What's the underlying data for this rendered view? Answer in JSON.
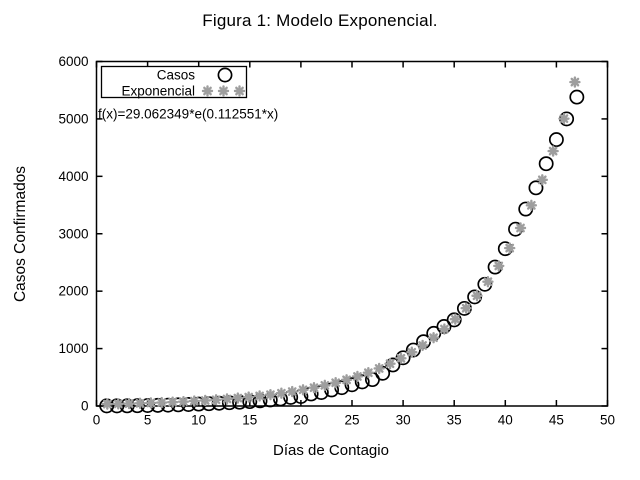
{
  "figure": {
    "title": "Figura 1: Modelo Exponencial.",
    "equation": "f(x)=29.062349*e(0.112551*x)",
    "x_axis": {
      "title": "Días de Contagio"
    },
    "y_axis": {
      "title": "Casos Confirmados"
    },
    "legend": {
      "entries": [
        {
          "label": "Casos",
          "marker": "open-circle"
        },
        {
          "label": "Exponencial",
          "marker": "asterisk"
        }
      ]
    },
    "colors": {
      "casos": "#000000",
      "exponencial": "#9e9e9e",
      "axis": "#000000",
      "background": "#ffffff"
    }
  },
  "chart_data": {
    "type": "scatter",
    "title": "Figura 1: Modelo Exponencial.",
    "xlabel": "Días de Contagio",
    "ylabel": "Casos Confirmados",
    "xlim": [
      0,
      50
    ],
    "ylim": [
      0,
      6000
    ],
    "x_ticks": [
      0,
      5,
      10,
      15,
      20,
      25,
      30,
      35,
      40,
      45,
      50
    ],
    "y_ticks": [
      0,
      1000,
      2000,
      3000,
      4000,
      5000,
      6000
    ],
    "grid": false,
    "legend_position": "top-left-inside",
    "annotation": "f(x)=29.062349*e(0.112551*x)",
    "series": [
      {
        "name": "Casos",
        "marker": "open-circle",
        "color": "#000000",
        "x": [
          1,
          2,
          3,
          4,
          5,
          6,
          7,
          8,
          9,
          10,
          11,
          12,
          13,
          14,
          15,
          16,
          17,
          18,
          19,
          20,
          21,
          22,
          23,
          24,
          25,
          26,
          27,
          28,
          29,
          30,
          31,
          32,
          33,
          34,
          35,
          36,
          37,
          38,
          39,
          40,
          41,
          42,
          43,
          44,
          45,
          46,
          47
        ],
        "y": [
          2,
          2,
          3,
          5,
          8,
          11,
          15,
          20,
          26,
          33,
          40,
          48,
          57,
          66,
          77,
          90,
          105,
          122,
          150,
          165,
          210,
          235,
          280,
          320,
          370,
          420,
          460,
          570,
          715,
          840,
          975,
          1120,
          1265,
          1385,
          1500,
          1700,
          1900,
          2120,
          2420,
          2740,
          3080,
          3430,
          3800,
          4220,
          4640,
          5000,
          5380
        ]
      },
      {
        "name": "Exponencial",
        "marker": "asterisk",
        "color": "#9e9e9e",
        "x": [
          1.06,
          2.13,
          3.19,
          4.26,
          5.32,
          6.38,
          7.45,
          8.51,
          9.57,
          10.64,
          11.7,
          12.77,
          13.83,
          14.89,
          15.96,
          17.02,
          18.09,
          19.15,
          20.21,
          21.28,
          22.34,
          23.4,
          24.47,
          25.53,
          26.6,
          27.66,
          28.72,
          29.79,
          30.85,
          31.91,
          32.98,
          34.04,
          35.11,
          36.17,
          37.23,
          38.3,
          39.36,
          40.43,
          41.49,
          42.55,
          43.62,
          44.68,
          45.74,
          46.81
        ],
        "y": [
          32.8,
          36.9,
          41.6,
          46.9,
          52.9,
          59.6,
          67.2,
          75.7,
          85.4,
          96.2,
          108.5,
          122.3,
          137.8,
          155.4,
          175.1,
          197.4,
          222.5,
          250.8,
          282.7,
          318.7,
          359.2,
          404.9,
          456.4,
          514.5,
          579.9,
          653.7,
          736.8,
          830.6,
          936.2,
          1055.3,
          1189.5,
          1340.8,
          1511.4,
          1703.6,
          1920.3,
          2164.6,
          2439.9,
          2750.3,
          3100.1,
          3494.5,
          3939.0,
          4440.0,
          5004.8,
          5641.4
        ]
      }
    ]
  }
}
